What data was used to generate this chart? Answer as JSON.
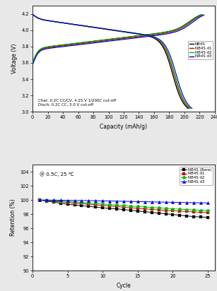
{
  "top_chart": {
    "xlabel": "Capacity (mAh/g)",
    "ylabel": "Voltage (V)",
    "xlim": [
      0,
      240
    ],
    "ylim": [
      3.0,
      4.3
    ],
    "xticks": [
      0,
      20,
      40,
      60,
      80,
      100,
      120,
      140,
      160,
      180,
      200,
      220,
      240
    ],
    "yticks": [
      3.0,
      3.2,
      3.4,
      3.6,
      3.8,
      4.0,
      4.2
    ],
    "annotation_line1": "Char: 0.2C CC/CV, 4.25 V 1/200C cut-off",
    "annotation_line2": "Disch: 0.2C CC, 3.0 V cut-off",
    "legend_labels": [
      "NB4S",
      "NB4S d1",
      "NB4S d2",
      "NB4S d3"
    ],
    "legend_colors": [
      "#000000",
      "#cc0000",
      "#00bb00",
      "#0000dd"
    ]
  },
  "bottom_chart": {
    "xlabel": "Cycle",
    "ylabel": "Retention (%)",
    "xlim": [
      0,
      26
    ],
    "ylim": [
      90,
      105
    ],
    "xticks": [
      0,
      5,
      10,
      15,
      20,
      25
    ],
    "yticks": [
      90,
      92,
      94,
      96,
      98,
      100,
      102,
      104
    ],
    "annotation": "@ 0.5C, 25 ℃",
    "legend_labels": [
      "NB4S (Bare)",
      "NB4S d1",
      "NB4S d2",
      "NB4S d3"
    ],
    "legend_colors": [
      "#000000",
      "#cc0000",
      "#00bb00",
      "#0000dd"
    ],
    "markers": [
      "s",
      "s",
      "o",
      "^"
    ],
    "cycles": [
      1,
      2,
      3,
      4,
      5,
      6,
      7,
      8,
      9,
      10,
      11,
      12,
      13,
      14,
      15,
      16,
      17,
      18,
      19,
      20,
      21,
      22,
      23,
      24,
      25
    ],
    "retention_bare": [
      100.0,
      99.85,
      99.7,
      99.55,
      99.4,
      99.3,
      99.2,
      99.1,
      99.0,
      98.9,
      98.8,
      98.75,
      98.65,
      98.55,
      98.45,
      98.35,
      98.25,
      98.15,
      98.05,
      97.95,
      97.85,
      97.75,
      97.65,
      97.6,
      97.55
    ],
    "retention_d1": [
      100.0,
      99.9,
      99.82,
      99.74,
      99.65,
      99.55,
      99.48,
      99.4,
      99.32,
      99.22,
      99.15,
      99.08,
      98.98,
      98.9,
      98.82,
      98.75,
      98.68,
      98.6,
      98.55,
      98.48,
      98.42,
      98.38,
      98.32,
      98.28,
      98.22
    ],
    "retention_d2": [
      100.0,
      99.95,
      99.9,
      99.85,
      99.8,
      99.72,
      99.65,
      99.58,
      99.5,
      99.43,
      99.36,
      99.28,
      99.22,
      99.15,
      99.08,
      99.02,
      98.95,
      98.88,
      98.82,
      98.76,
      98.7,
      98.65,
      98.6,
      98.55,
      98.5
    ],
    "retention_d3": [
      100.0,
      100.0,
      99.98,
      99.97,
      99.96,
      99.94,
      99.93,
      99.92,
      99.9,
      99.88,
      99.86,
      99.84,
      99.82,
      99.8,
      99.78,
      99.76,
      99.74,
      99.72,
      99.7,
      99.68,
      99.66,
      99.64,
      99.62,
      99.6,
      99.58
    ]
  },
  "bg_color": "#ffffff",
  "fig_bg": "#e8e8e8"
}
